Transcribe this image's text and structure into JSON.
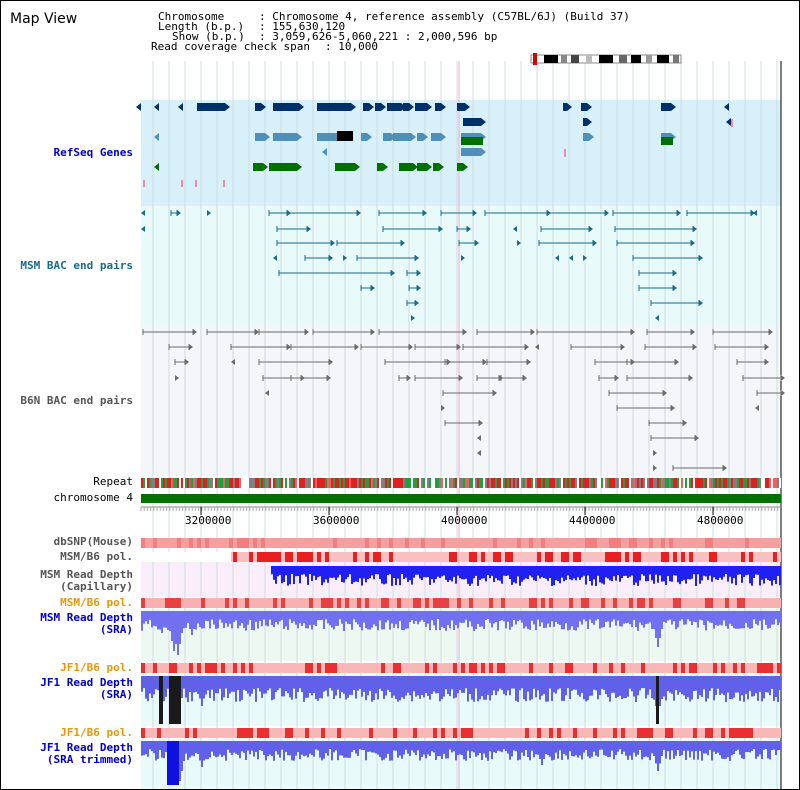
{
  "app": {
    "title": "Map View"
  },
  "info": {
    "chromosome_label": "Chromosome",
    "chromosome_value": ": Chromosome 4, reference assembly (C57BL/6J) (Build 37)",
    "length_label": "Length (b.p.)",
    "length_value": ": 155,630,120",
    "show_label": "Show (b.p.)",
    "show_value": ": 3,059,626-5,060,221 : 2,000,596 bp",
    "coverage_label": "Read coverage check span",
    "coverage_value": ": 10,000"
  },
  "tracks": {
    "refseq": "RefSeq Genes",
    "msm_bac": "MSM BAC end pairs",
    "b6n_bac": "B6N BAC end pairs",
    "repeat": "Repeat",
    "chromosome": "chromosome 4",
    "dbsnp": "dbSNP(Mouse)",
    "msm_b6_pol_1": "MSM/B6 pol.",
    "msm_read_depth_cap_1": "MSM Read Depth",
    "msm_read_depth_cap_2": "(Capillary)",
    "msm_b6_pol_2": "MSM/B6 pol.",
    "msm_read_depth_sra_1": "MSM Read Depth",
    "msm_read_depth_sra_2": "(SRA)",
    "jf1_b6_pol_1": "JF1/B6 pol.",
    "jf1_read_depth_sra_1": "JF1 Read Depth",
    "jf1_read_depth_sra_2": "(SRA)",
    "jf1_b6_pol_2": "JF1/B6 pol.",
    "jf1_read_depth_trim_1": "JF1 Read Depth",
    "jf1_read_depth_trim_2": "(SRA trimmed)"
  },
  "axis": {
    "ticks": [
      "3200000",
      "3600000",
      "4000000",
      "4400000",
      "4800000"
    ]
  },
  "colors": {
    "refseq_bg": "#d8f0fa",
    "msm_bg": "#e8fafa",
    "b6n_bg": "#f4f6fa",
    "label_blue": "#0000c8",
    "label_teal": "#1a6a8a",
    "label_gray": "#555555",
    "label_orange": "#e8960a",
    "chrom_green": "#007000",
    "depth_blue": "#2020f0"
  }
}
